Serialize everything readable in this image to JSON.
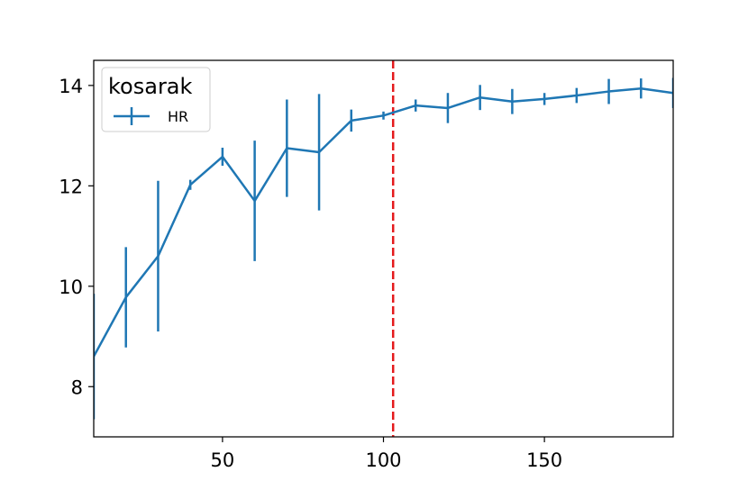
{
  "chart_data": {
    "type": "line",
    "legend": {
      "title": "kosarak",
      "placement": "top-left",
      "entries": [
        "HR"
      ]
    },
    "xlim": [
      10,
      190
    ],
    "ylim": [
      7.0,
      14.5
    ],
    "xticks": [
      50,
      100,
      150
    ],
    "yticks": [
      8,
      10,
      12,
      14
    ],
    "grid": false,
    "series": [
      {
        "name": "HR",
        "color": "#1f77b4",
        "x": [
          10,
          20,
          30,
          40,
          50,
          60,
          70,
          80,
          90,
          100,
          110,
          120,
          130,
          140,
          150,
          160,
          170,
          180,
          190
        ],
        "y": [
          8.6,
          9.78,
          10.6,
          12.02,
          12.58,
          11.7,
          12.75,
          12.67,
          13.3,
          13.4,
          13.6,
          13.55,
          13.76,
          13.68,
          13.73,
          13.8,
          13.88,
          13.94,
          13.85
        ],
        "yerr": [
          1.25,
          1.0,
          1.5,
          0.1,
          0.18,
          1.2,
          0.97,
          1.16,
          0.22,
          0.08,
          0.12,
          0.3,
          0.25,
          0.25,
          0.12,
          0.15,
          0.25,
          0.2,
          0.3
        ]
      }
    ],
    "reference_line": {
      "x": 103,
      "color": "#e41a1c",
      "style": "dashed"
    }
  }
}
